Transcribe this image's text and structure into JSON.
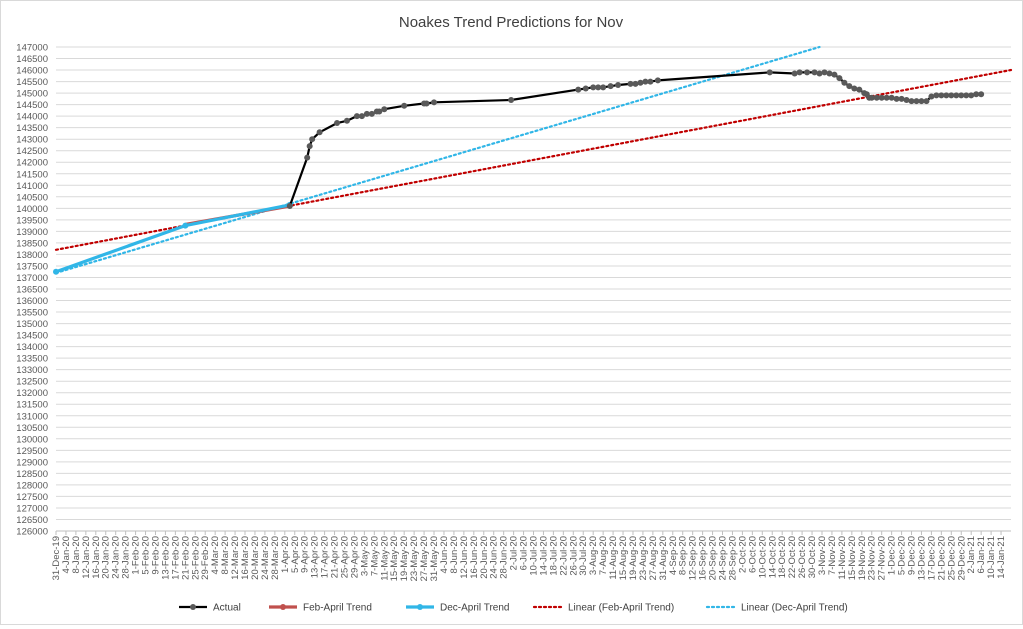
{
  "chart_data": {
    "type": "line",
    "title": "Noakes Trend Predictions for Nov",
    "xlabel": "",
    "ylabel": "",
    "ylim": [
      126000,
      147000
    ],
    "yticks": [
      126000,
      126500,
      127000,
      127500,
      128000,
      128500,
      129000,
      129500,
      130000,
      130500,
      131000,
      131500,
      132000,
      132500,
      133000,
      133500,
      134000,
      134500,
      135000,
      135500,
      136000,
      136500,
      137000,
      137500,
      138000,
      138500,
      139000,
      139500,
      140000,
      140500,
      141000,
      141500,
      142000,
      142500,
      143000,
      143500,
      144000,
      144500,
      145000,
      145500,
      146000,
      146500,
      147000
    ],
    "xrange": [
      "2019-12-31",
      "2021-01-18"
    ],
    "xtick_labels": [
      "31-Dec-19",
      "4-Jan-20",
      "8-Jan-20",
      "12-Jan-20",
      "16-Jan-20",
      "20-Jan-20",
      "24-Jan-20",
      "28-Jan-20",
      "1-Feb-20",
      "5-Feb-20",
      "9-Feb-20",
      "13-Feb-20",
      "17-Feb-20",
      "21-Feb-20",
      "25-Feb-20",
      "29-Feb-20",
      "4-Mar-20",
      "8-Mar-20",
      "12-Mar-20",
      "16-Mar-20",
      "20-Mar-20",
      "24-Mar-20",
      "28-Mar-20",
      "1-Apr-20",
      "5-Apr-20",
      "9-Apr-20",
      "13-Apr-20",
      "17-Apr-20",
      "21-Apr-20",
      "25-Apr-20",
      "29-Apr-20",
      "3-May-20",
      "7-May-20",
      "11-May-20",
      "15-May-20",
      "19-May-20",
      "23-May-20",
      "27-May-20",
      "31-May-20",
      "4-Jun-20",
      "8-Jun-20",
      "12-Jun-20",
      "16-Jun-20",
      "20-Jun-20",
      "24-Jun-20",
      "28-Jun-20",
      "2-Jul-20",
      "6-Jul-20",
      "10-Jul-20",
      "14-Jul-20",
      "18-Jul-20",
      "22-Jul-20",
      "26-Jul-20",
      "30-Jul-20",
      "3-Aug-20",
      "7-Aug-20",
      "11-Aug-20",
      "15-Aug-20",
      "19-Aug-20",
      "23-Aug-20",
      "27-Aug-20",
      "31-Aug-20",
      "4-Sep-20",
      "8-Sep-20",
      "12-Sep-20",
      "16-Sep-20",
      "20-Sep-20",
      "24-Sep-20",
      "28-Sep-20",
      "2-Oct-20",
      "6-Oct-20",
      "10-Oct-20",
      "14-Oct-20",
      "18-Oct-20",
      "22-Oct-20",
      "26-Oct-20",
      "30-Oct-20",
      "3-Nov-20",
      "7-Nov-20",
      "11-Nov-20",
      "15-Nov-20",
      "19-Nov-20",
      "23-Nov-20",
      "27-Nov-20",
      "1-Dec-20",
      "5-Dec-20",
      "9-Dec-20",
      "13-Dec-20",
      "17-Dec-20",
      "21-Dec-20",
      "25-Dec-20",
      "29-Dec-20",
      "2-Jan-21",
      "6-Jan-21",
      "10-Jan-21",
      "14-Jan-21"
    ],
    "grid": true,
    "legend_position": "bottom",
    "series": [
      {
        "name": "Actual",
        "color": "#000000",
        "marker_color": "#595959",
        "style": "solid-markers",
        "points": [
          [
            "2020-04-03",
            140100
          ],
          [
            "2020-04-10",
            142200
          ],
          [
            "2020-04-11",
            142700
          ],
          [
            "2020-04-12",
            143000
          ],
          [
            "2020-04-15",
            143300
          ],
          [
            "2020-04-22",
            143700
          ],
          [
            "2020-04-26",
            143800
          ],
          [
            "2020-04-30",
            144000
          ],
          [
            "2020-05-02",
            144000
          ],
          [
            "2020-05-04",
            144100
          ],
          [
            "2020-05-06",
            144100
          ],
          [
            "2020-05-08",
            144200
          ],
          [
            "2020-05-09",
            144200
          ],
          [
            "2020-05-11",
            144300
          ],
          [
            "2020-05-19",
            144450
          ],
          [
            "2020-05-27",
            144550
          ],
          [
            "2020-05-28",
            144550
          ],
          [
            "2020-05-31",
            144600
          ],
          [
            "2020-07-01",
            144700
          ],
          [
            "2020-07-28",
            145150
          ],
          [
            "2020-07-31",
            145200
          ],
          [
            "2020-08-03",
            145250
          ],
          [
            "2020-08-05",
            145250
          ],
          [
            "2020-08-07",
            145250
          ],
          [
            "2020-08-10",
            145300
          ],
          [
            "2020-08-13",
            145350
          ],
          [
            "2020-08-18",
            145400
          ],
          [
            "2020-08-20",
            145400
          ],
          [
            "2020-08-22",
            145450
          ],
          [
            "2020-08-24",
            145500
          ],
          [
            "2020-08-26",
            145500
          ],
          [
            "2020-08-29",
            145550
          ],
          [
            "2020-10-13",
            145900
          ],
          [
            "2020-10-23",
            145850
          ],
          [
            "2020-10-25",
            145900
          ],
          [
            "2020-10-28",
            145900
          ],
          [
            "2020-10-31",
            145900
          ],
          [
            "2020-11-02",
            145850
          ],
          [
            "2020-11-04",
            145900
          ],
          [
            "2020-11-06",
            145850
          ],
          [
            "2020-11-08",
            145800
          ],
          [
            "2020-11-10",
            145650
          ],
          [
            "2020-11-12",
            145450
          ],
          [
            "2020-11-14",
            145300
          ],
          [
            "2020-11-16",
            145200
          ],
          [
            "2020-11-18",
            145150
          ],
          [
            "2020-11-20",
            145000
          ],
          [
            "2020-11-21",
            144950
          ],
          [
            "2020-11-22",
            144800
          ],
          [
            "2020-11-23",
            144800
          ],
          [
            "2020-11-25",
            144800
          ],
          [
            "2020-11-27",
            144800
          ],
          [
            "2020-11-29",
            144800
          ],
          [
            "2020-12-01",
            144800
          ],
          [
            "2020-12-03",
            144750
          ],
          [
            "2020-12-05",
            144750
          ],
          [
            "2020-12-07",
            144700
          ],
          [
            "2020-12-09",
            144650
          ],
          [
            "2020-12-11",
            144650
          ],
          [
            "2020-12-13",
            144650
          ],
          [
            "2020-12-15",
            144650
          ],
          [
            "2020-12-17",
            144850
          ],
          [
            "2020-12-19",
            144900
          ],
          [
            "2020-12-21",
            144900
          ],
          [
            "2020-12-23",
            144900
          ],
          [
            "2020-12-25",
            144900
          ],
          [
            "2020-12-27",
            144900
          ],
          [
            "2020-12-29",
            144900
          ],
          [
            "2020-12-31",
            144900
          ],
          [
            "2021-01-02",
            144900
          ],
          [
            "2021-01-04",
            144950
          ],
          [
            "2021-01-06",
            144950
          ]
        ]
      },
      {
        "name": "Feb-April Trend",
        "color": "#c0504d",
        "marker_color": "#c0504d",
        "style": "solid-thick",
        "points": [
          [
            "2020-02-21",
            139300
          ],
          [
            "2020-04-03",
            140100
          ]
        ]
      },
      {
        "name": "Dec-April Trend",
        "color": "#31b6e7",
        "marker_color": "#31b6e7",
        "style": "solid-thick-markers",
        "points": [
          [
            "2019-12-31",
            137250
          ],
          [
            "2020-02-21",
            139250
          ],
          [
            "2020-04-03",
            140150
          ]
        ]
      },
      {
        "name": "Linear (Feb-April Trend)",
        "color": "#c00000",
        "style": "dotted",
        "points": [
          [
            "2019-12-31",
            138200
          ],
          [
            "2021-01-18",
            146000
          ]
        ]
      },
      {
        "name": "Linear (Dec-April Trend)",
        "color": "#31b6e7",
        "style": "dotted",
        "points": [
          [
            "2019-12-31",
            137200
          ],
          [
            "2020-11-02",
            147000
          ]
        ]
      }
    ]
  }
}
